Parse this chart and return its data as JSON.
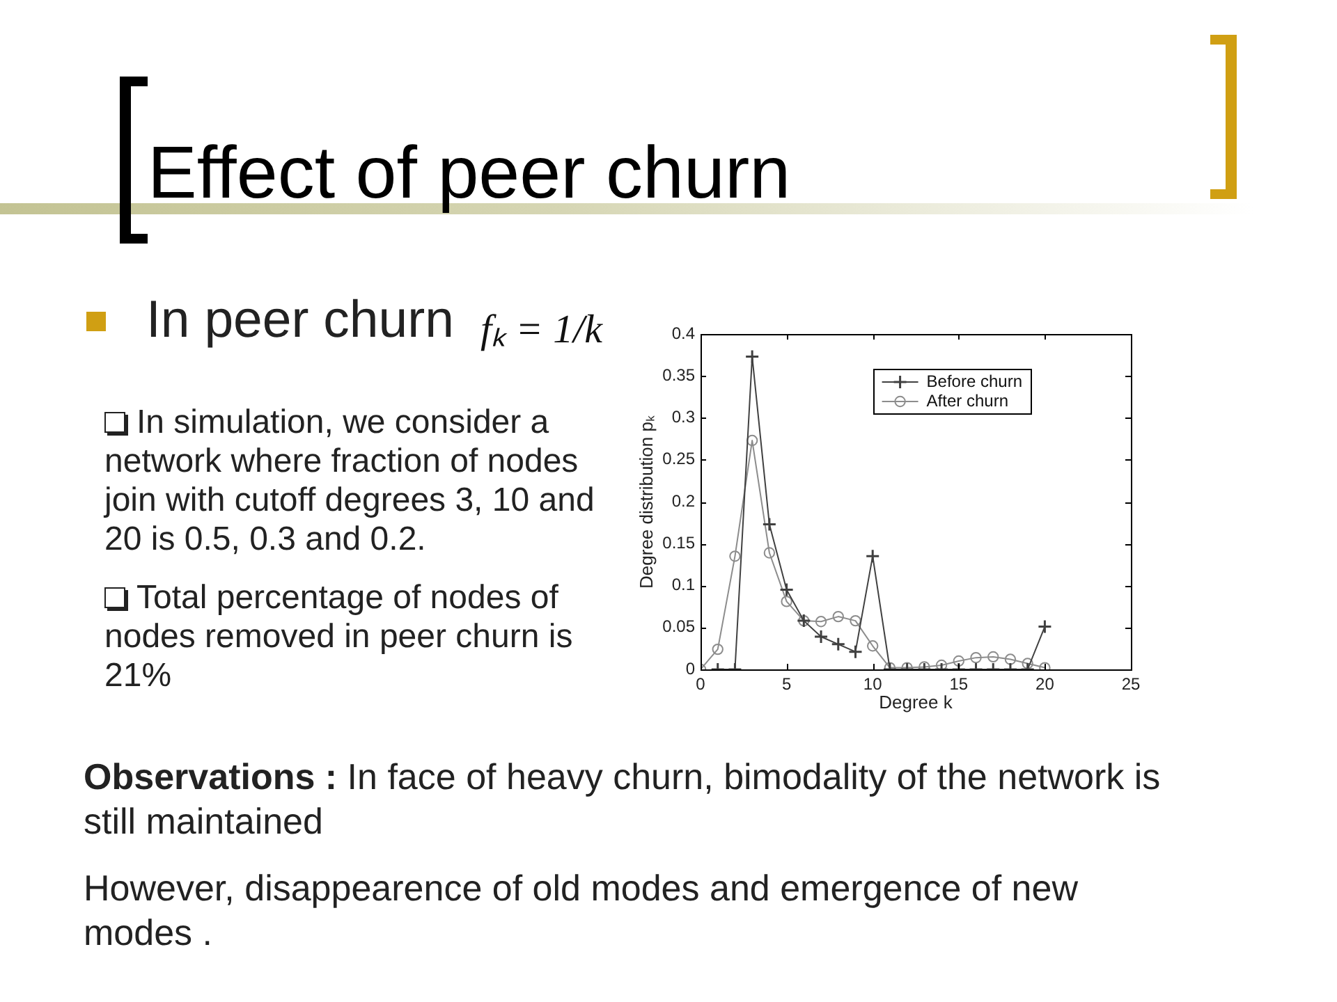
{
  "chart_data": {
    "type": "line",
    "title": "Effect of peer churn",
    "xlabel": "Degree k",
    "ylabel": "Degree distribution pₖ",
    "xlim": [
      0,
      25
    ],
    "xticks": [
      0,
      5,
      10,
      15,
      20,
      25
    ],
    "ylim": [
      0,
      0.4
    ],
    "yticks": [
      0,
      0.05,
      0.1,
      0.15,
      0.2,
      0.25,
      0.3,
      0.35,
      0.4
    ],
    "legend": "top right",
    "series": [
      {
        "name": "Before churn",
        "color": "#404040",
        "marker": "cross",
        "x": [
          1,
          2,
          3,
          4,
          5,
          6,
          7,
          8,
          9,
          10,
          11,
          12,
          13,
          14,
          15,
          16,
          17,
          18,
          19,
          20
        ],
        "values": [
          0,
          0,
          0.373,
          0.173,
          0.095,
          0.058,
          0.039,
          0.03,
          0.021,
          0.135,
          0,
          0,
          0,
          0,
          0,
          0,
          0,
          0,
          0,
          0.051
        ]
      },
      {
        "name": "After churn",
        "color": "#8c8c8c",
        "marker": "circle",
        "x": [
          0,
          1,
          2,
          3,
          4,
          5,
          6,
          7,
          8,
          9,
          10,
          11,
          12,
          13,
          14,
          15,
          16,
          17,
          18,
          19,
          20
        ],
        "values": [
          0,
          0.024,
          0.135,
          0.273,
          0.139,
          0.081,
          0.058,
          0.057,
          0.063,
          0.058,
          0.028,
          0.002,
          0.002,
          0.003,
          0.005,
          0.01,
          0.014,
          0.015,
          0.012,
          0.007,
          0.002
        ]
      }
    ],
    "annotations": [
      "In peer churn",
      "fₖ = 1/k",
      "In simulation, we consider a network where fraction of nodes join with cutoff degrees 3, 10 and 20 is 0.5, 0.3 and 0.2.",
      "Total percentage of nodes of nodes removed in peer churn is 21%",
      "Observations : In face of heavy churn, bimodality of the network is still maintained",
      "However, disappearence of old modes and emergence of new modes ."
    ]
  }
}
